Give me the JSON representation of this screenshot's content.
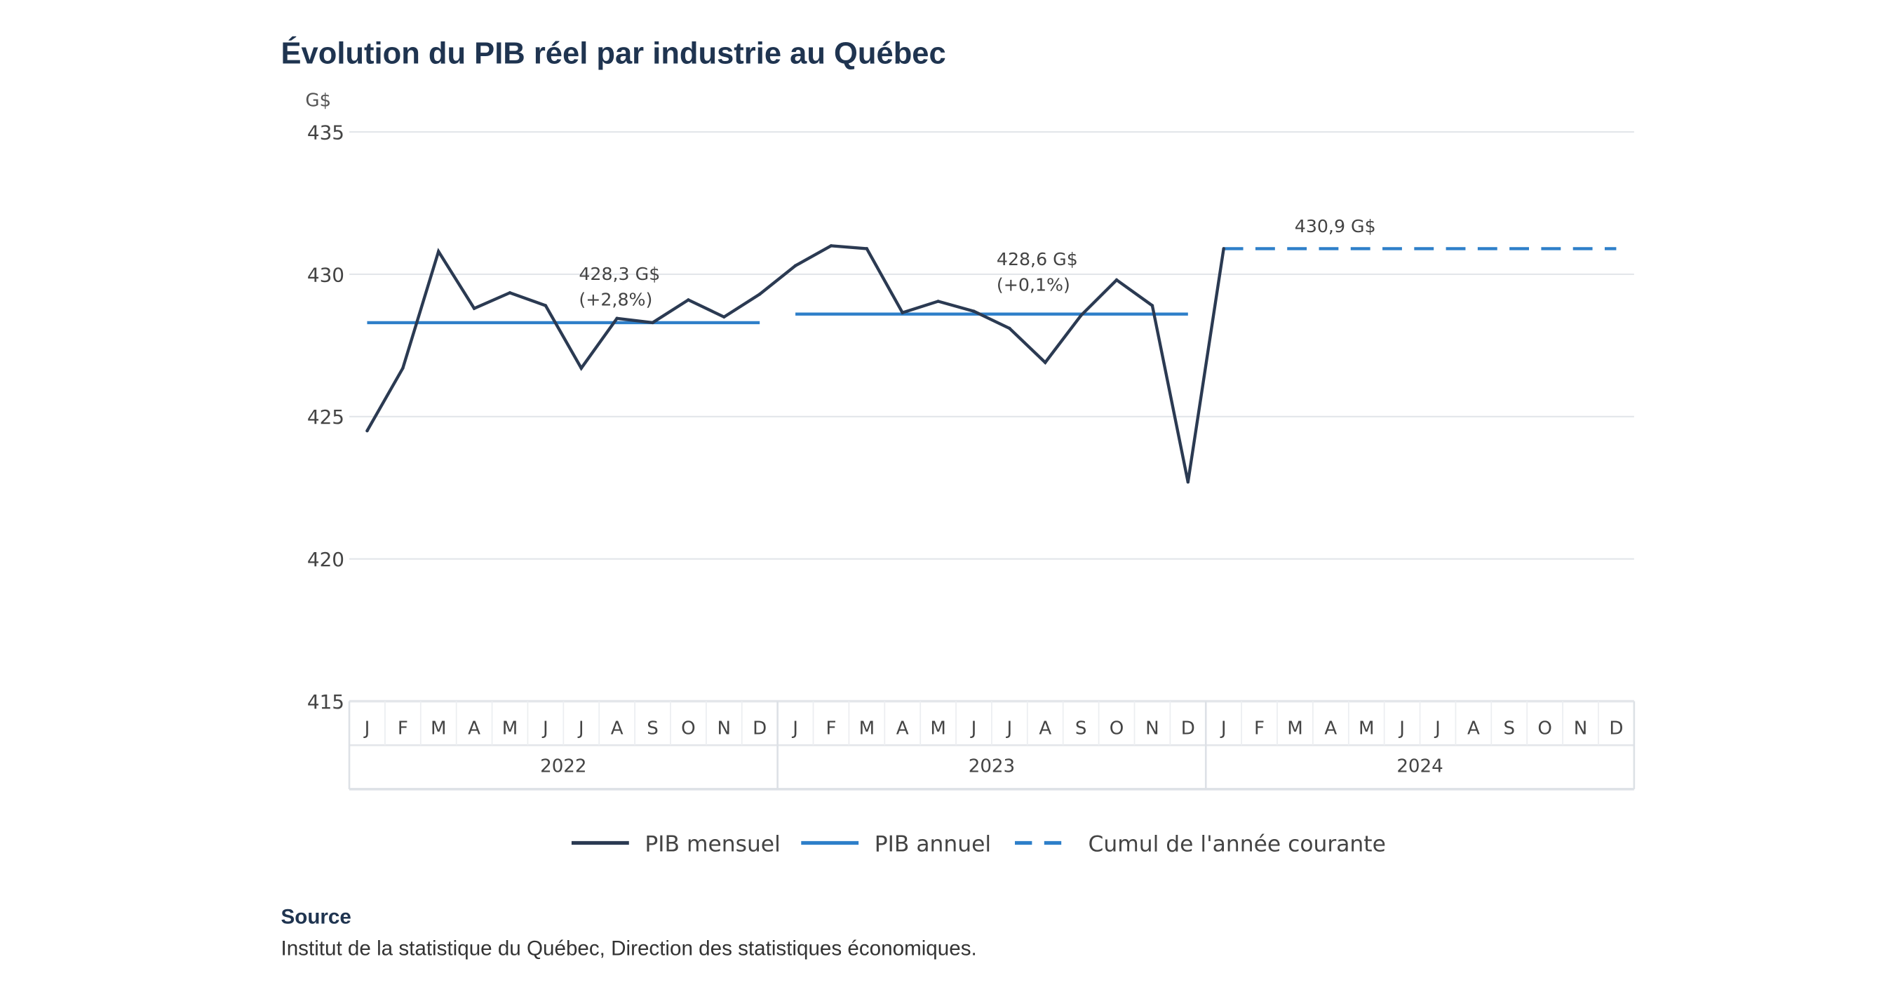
{
  "title": "Évolution du PIB réel par industrie au Québec",
  "source": {
    "heading": "Source",
    "text": "Institut de la statistique du Québec, Direction des statistiques économiques."
  },
  "chart_data": {
    "type": "line",
    "title": "Évolution du PIB réel par industrie au Québec",
    "ylabel": "G$",
    "ylim": [
      415,
      435
    ],
    "yticks": [
      415,
      420,
      425,
      430,
      435
    ],
    "grid": true,
    "legend_position": "bottom",
    "month_labels": [
      "J",
      "F",
      "M",
      "A",
      "M",
      "J",
      "J",
      "A",
      "S",
      "O",
      "N",
      "D"
    ],
    "years": [
      "2022",
      "2023",
      "2024"
    ],
    "series": [
      {
        "name": "PIB mensuel",
        "color": "#2b3a52",
        "style": "solid",
        "values": [
          424.5,
          426.7,
          430.8,
          428.8,
          429.35,
          428.9,
          426.7,
          428.45,
          428.3,
          429.1,
          428.5,
          429.3,
          430.3,
          431.0,
          430.9,
          428.65,
          429.05,
          428.7,
          428.1,
          426.9,
          428.55,
          429.8,
          428.9,
          422.7,
          430.9
        ]
      },
      {
        "name": "PIB annuel",
        "color": "#2e7fc9",
        "style": "solid",
        "segments": [
          {
            "year": "2022",
            "value": 428.3
          },
          {
            "year": "2023",
            "value": 428.6
          }
        ]
      },
      {
        "name": "Cumul de l'année courante",
        "color": "#2e7fc9",
        "style": "dashed",
        "segments": [
          {
            "year": "2024",
            "value": 430.9
          }
        ]
      }
    ],
    "annotations": [
      {
        "year": "2022",
        "lines": [
          "428,3 G$",
          "(+2,8%)"
        ]
      },
      {
        "year": "2023",
        "lines": [
          "428,6 G$",
          "(+0,1%)"
        ]
      },
      {
        "year": "2024",
        "lines": [
          "430,9 G$"
        ]
      }
    ]
  }
}
